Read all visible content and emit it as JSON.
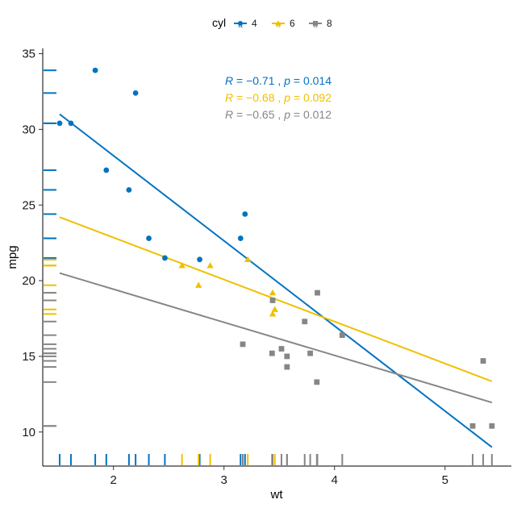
{
  "chart_data": {
    "type": "scatter",
    "xlabel": "wt",
    "ylabel": "mpg",
    "xlim": [
      1.36,
      5.6
    ],
    "ylim": [
      7.75,
      35.35
    ],
    "xticks": [
      2,
      3,
      4,
      5
    ],
    "yticks": [
      10,
      15,
      20,
      25,
      30,
      35
    ],
    "grid": false,
    "legend": {
      "title": "cyl",
      "placement": "top",
      "entries": [
        "4",
        "6",
        "8"
      ]
    },
    "series": [
      {
        "name": "4",
        "color": "#0073C2",
        "marker": "circle",
        "points": [
          [
            1.513,
            30.4
          ],
          [
            1.615,
            30.4
          ],
          [
            1.835,
            33.9
          ],
          [
            1.935,
            27.3
          ],
          [
            2.14,
            26.0
          ],
          [
            2.2,
            32.4
          ],
          [
            2.32,
            22.8
          ],
          [
            2.465,
            21.5
          ],
          [
            2.78,
            21.4
          ],
          [
            3.15,
            22.8
          ],
          [
            3.19,
            24.4
          ]
        ],
        "fit": [
          [
            1.513,
            31.0
          ],
          [
            5.424,
            9.0
          ]
        ],
        "stat": {
          "R": "−0.71",
          "p": "0.014"
        }
      },
      {
        "name": "6",
        "color": "#EFC000",
        "marker": "triangle",
        "points": [
          [
            2.62,
            21.0
          ],
          [
            2.77,
            19.7
          ],
          [
            2.875,
            21.0
          ],
          [
            3.215,
            21.4
          ],
          [
            3.44,
            19.2
          ],
          [
            3.44,
            17.8
          ],
          [
            3.46,
            18.1
          ]
        ],
        "fit": [
          [
            1.513,
            24.2
          ],
          [
            5.424,
            13.35
          ]
        ],
        "stat": {
          "R": "−0.68",
          "p": "0.092"
        }
      },
      {
        "name": "8",
        "color": "#868686",
        "marker": "square",
        "points": [
          [
            3.17,
            15.8
          ],
          [
            3.435,
            15.2
          ],
          [
            3.44,
            18.7
          ],
          [
            3.52,
            15.5
          ],
          [
            3.57,
            15.0
          ],
          [
            3.57,
            14.3
          ],
          [
            3.73,
            17.3
          ],
          [
            3.78,
            15.2
          ],
          [
            3.84,
            13.3
          ],
          [
            3.845,
            19.2
          ],
          [
            4.07,
            16.4
          ],
          [
            5.25,
            10.4
          ],
          [
            5.345,
            14.7
          ],
          [
            5.424,
            10.4
          ]
        ],
        "fit": [
          [
            1.513,
            20.5
          ],
          [
            5.424,
            11.95
          ]
        ],
        "stat": {
          "R": "−0.65",
          "p": "0.012"
        }
      }
    ]
  }
}
